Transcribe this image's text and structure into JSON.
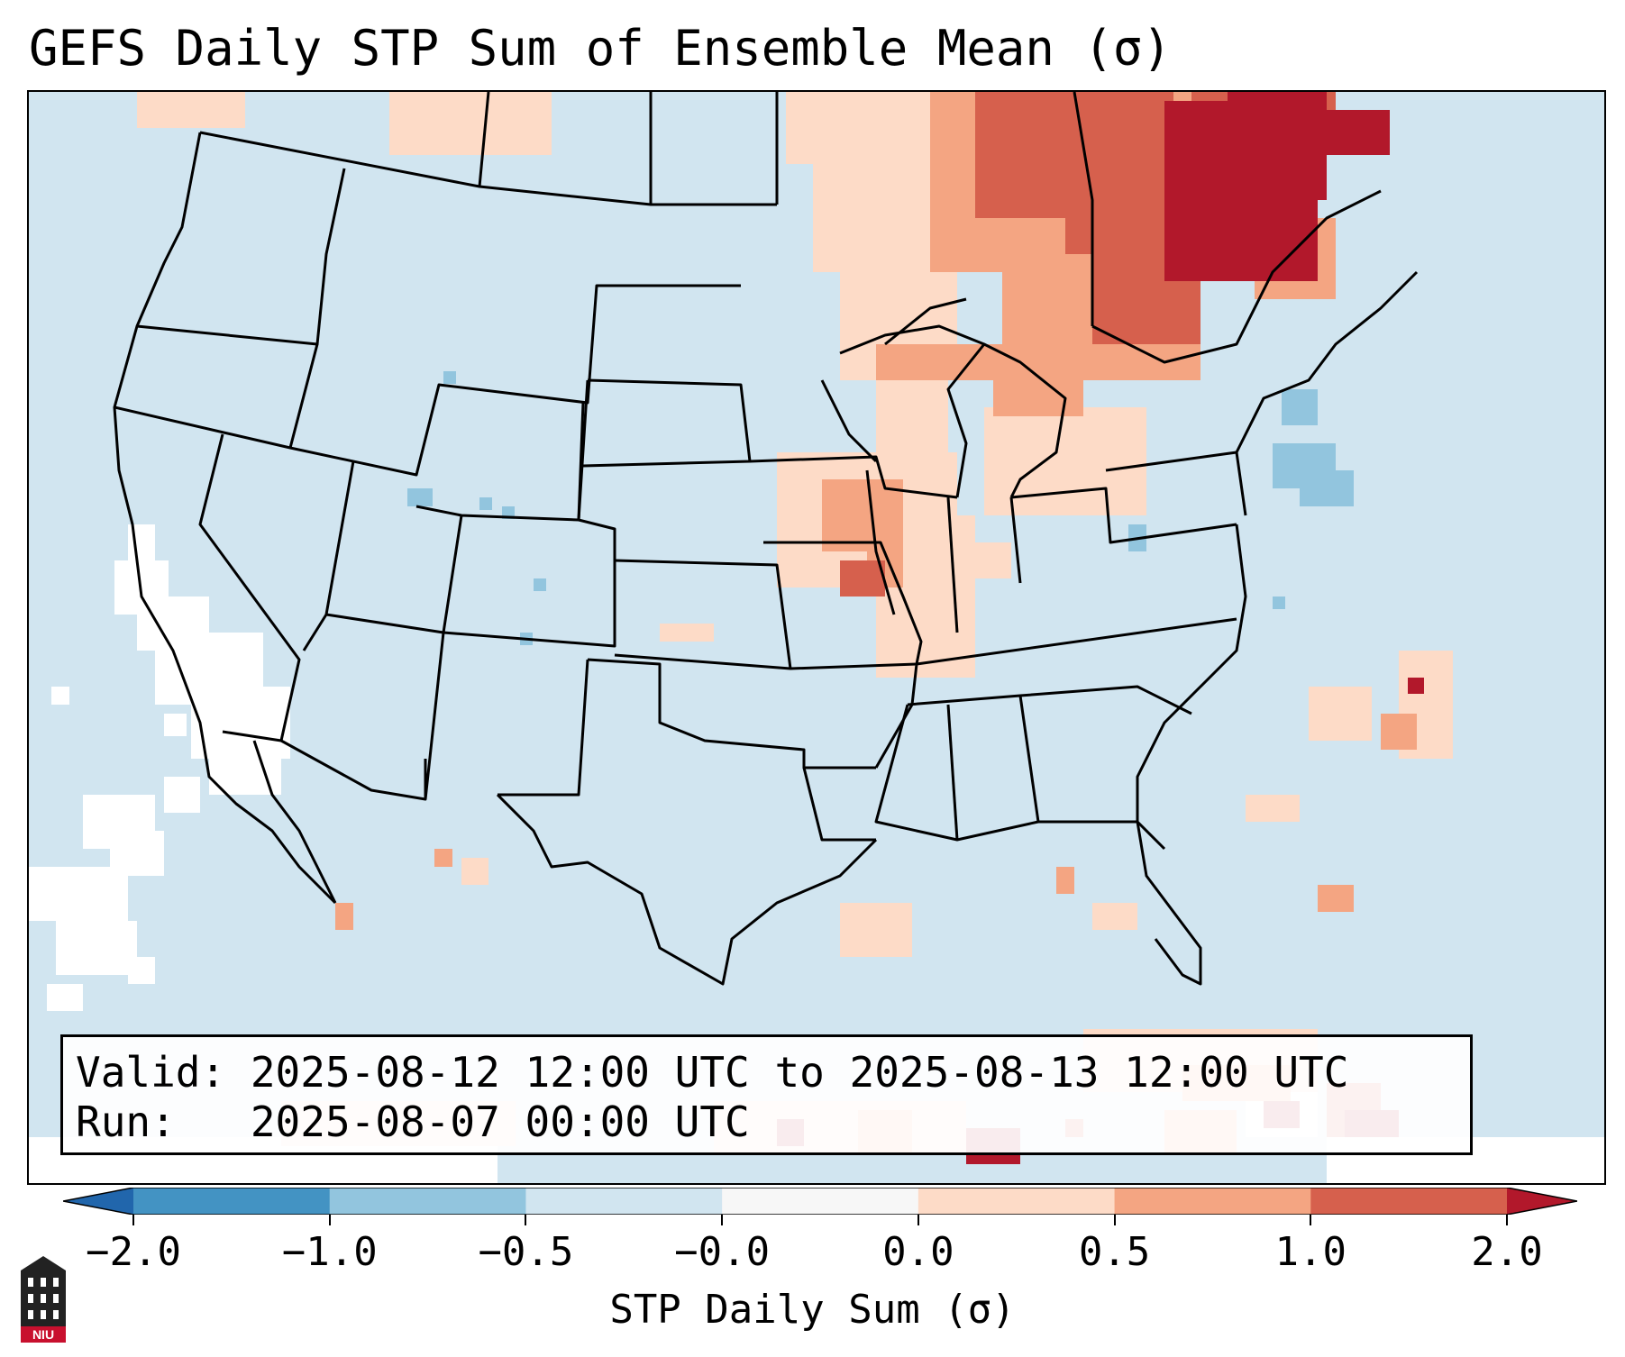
{
  "title": "GEFS Daily STP Sum of Ensemble Mean (σ)",
  "valid_line": "Valid: 2025-08-12 12:00 UTC to 2025-08-13 12:00 UTC",
  "run_line": "Run:   2025-08-07 00:00 UTC",
  "colorbar": {
    "label": "STP Daily Sum (σ)",
    "ticks": [
      "−2.0",
      "−1.0",
      "−0.5",
      "−0.0",
      "0.0",
      "0.5",
      "1.0",
      "2.0"
    ],
    "colors": [
      "#4393c3",
      "#92c5de",
      "#d1e5f0",
      "#f7f7f7",
      "#fddbc7",
      "#f4a582",
      "#d6604d"
    ],
    "under_color": "#2166ac",
    "over_color": "#b2182b"
  },
  "logo_text": "NIU",
  "icons": {
    "logo": "niu-logo-icon"
  }
}
